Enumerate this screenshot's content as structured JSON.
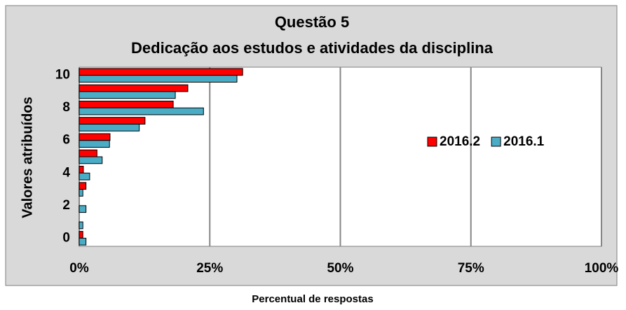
{
  "chart_data": {
    "type": "bar",
    "orientation": "horizontal",
    "title": "Questão  5",
    "subtitle": "Dedicação aos estudos e atividades da disciplina",
    "xlabel": "Percentual de respostas",
    "ylabel": "Valores atribuídos",
    "categories": [
      "0",
      null,
      "2",
      null,
      "4",
      null,
      "6",
      null,
      "8",
      null,
      "10"
    ],
    "series": [
      {
        "name": "2016.2",
        "color": "#ff0000",
        "values": [
          0.7,
          0,
          0,
          1.3,
          0.8,
          3.4,
          5.9,
          12.6,
          18.0,
          20.8,
          31.3
        ]
      },
      {
        "name": "2016.1",
        "color": "#4bacc6",
        "values": [
          1.3,
          0.7,
          1.3,
          0.7,
          2.0,
          4.4,
          5.8,
          11.5,
          23.8,
          18.4,
          30.2
        ]
      }
    ],
    "xlim": [
      0,
      100
    ],
    "xticks": [
      {
        "value": 0,
        "label": "0%"
      },
      {
        "value": 25,
        "label": "25%"
      },
      {
        "value": 50,
        "label": "50%"
      },
      {
        "value": 75,
        "label": "75%"
      },
      {
        "value": 100,
        "label": "100%"
      }
    ],
    "grid": true,
    "legend": "right"
  }
}
